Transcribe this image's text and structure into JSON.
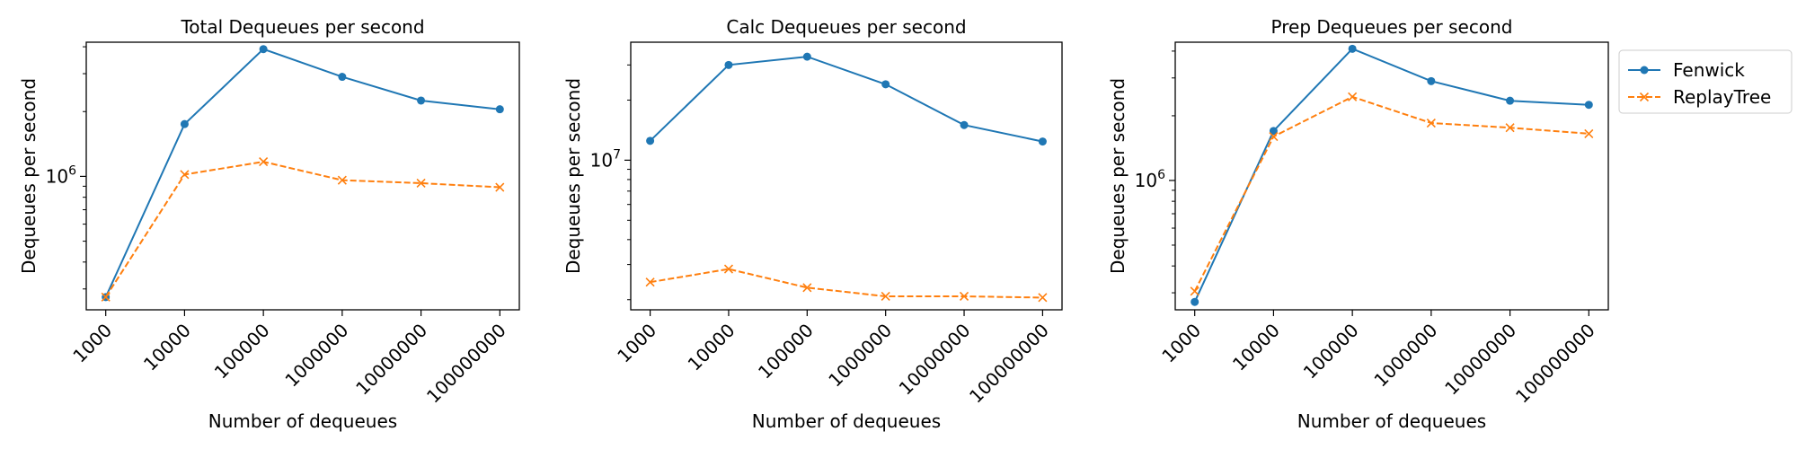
{
  "chart_data": [
    {
      "type": "line",
      "title": "Total Dequeues per second",
      "xlabel": "Number of dequeues",
      "ylabel": "Dequeues per second",
      "y_scale": "log",
      "ylim": [
        240000,
        4200000
      ],
      "y_ticks": [
        {
          "value": 1000000,
          "base": "10",
          "exp": "6"
        }
      ],
      "categories": [
        "1000",
        "10000",
        "100000",
        "1000000",
        "10000000",
        "100000000"
      ],
      "series": [
        {
          "name": "Fenwick",
          "color": "#1f77b4",
          "marker": "circle",
          "line_style": "solid",
          "values": [
            275000,
            1750000,
            3900000,
            2900000,
            2250000,
            2050000
          ]
        },
        {
          "name": "ReplayTree",
          "color": "#ff7f0e",
          "marker": "x",
          "line_style": "dashed",
          "values": [
            275000,
            1020000,
            1170000,
            960000,
            930000,
            890000
          ]
        }
      ],
      "legend": null
    },
    {
      "type": "line",
      "title": "Calc Dequeues per second",
      "xlabel": "Number of dequeues",
      "ylabel": "Dequeues per second",
      "y_scale": "log",
      "ylim": [
        1780000,
        39000000
      ],
      "y_ticks": [
        {
          "value": 10000000,
          "base": "10",
          "exp": "7"
        }
      ],
      "categories": [
        "1000",
        "10000",
        "100000",
        "1000000",
        "10000000",
        "100000000"
      ],
      "series": [
        {
          "name": "Fenwick",
          "color": "#1f77b4",
          "marker": "circle",
          "line_style": "solid",
          "values": [
            12500000,
            30000000,
            33000000,
            24000000,
            15000000,
            12400000
          ]
        },
        {
          "name": "ReplayTree",
          "color": "#ff7f0e",
          "marker": "x",
          "line_style": "dashed",
          "values": [
            2450000,
            2850000,
            2300000,
            2080000,
            2080000,
            2050000
          ]
        }
      ],
      "legend": null
    },
    {
      "type": "line",
      "title": "Prep Dequeues per second",
      "xlabel": "Number of dequeues",
      "ylabel": "Dequeues per second",
      "y_scale": "log",
      "ylim": [
        250000,
        4400000
      ],
      "y_ticks": [
        {
          "value": 1000000,
          "base": "10",
          "exp": "6"
        }
      ],
      "categories": [
        "1000",
        "10000",
        "100000",
        "1000000",
        "10000000",
        "100000000"
      ],
      "series": [
        {
          "name": "Fenwick",
          "color": "#1f77b4",
          "marker": "circle",
          "line_style": "solid",
          "values": [
            272000,
            1700000,
            4100000,
            2900000,
            2350000,
            2250000
          ]
        },
        {
          "name": "ReplayTree",
          "color": "#ff7f0e",
          "marker": "x",
          "line_style": "dashed",
          "values": [
            305000,
            1600000,
            2450000,
            1850000,
            1760000,
            1650000
          ]
        }
      ],
      "legend": {
        "position": "outside-upper-right",
        "entries": [
          "Fenwick",
          "ReplayTree"
        ]
      }
    }
  ]
}
